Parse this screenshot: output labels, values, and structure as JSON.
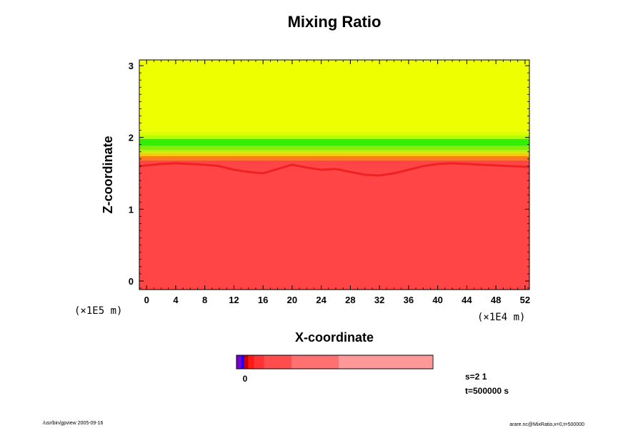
{
  "chart_data": {
    "type": "heatmap",
    "title": "Mixing Ratio",
    "xlabel": "X-coordinate",
    "ylabel": "Z-coordinate",
    "x_exponent_label": "(×1E4 m)",
    "y_exponent_label": "(×1E5 m)",
    "x_ticks": [
      0,
      4,
      8,
      12,
      16,
      20,
      24,
      28,
      32,
      36,
      40,
      44,
      48,
      52
    ],
    "y_ticks": [
      0,
      1,
      2,
      3
    ],
    "xlim": [
      -1,
      52.6
    ],
    "ylim": [
      -0.12,
      3.08
    ],
    "layers": [
      {
        "z_bottom": 2.08,
        "z_top": 3.08,
        "color": "#eeff00"
      },
      {
        "z_bottom": 2.03,
        "z_top": 2.08,
        "color": "#ddff00"
      },
      {
        "z_bottom": 1.98,
        "z_top": 2.03,
        "color": "#b6ff00"
      },
      {
        "z_bottom": 1.88,
        "z_top": 1.98,
        "color": "#33ee00"
      },
      {
        "z_bottom": 1.82,
        "z_top": 1.88,
        "color": "#88ee00"
      },
      {
        "z_bottom": 1.78,
        "z_top": 1.82,
        "color": "#ccee00"
      },
      {
        "z_bottom": 1.74,
        "z_top": 1.78,
        "color": "#ffc800"
      },
      {
        "z_bottom": 1.68,
        "z_top": 1.74,
        "color": "#ff7a1a"
      },
      {
        "z_bottom": -0.12,
        "z_top": 1.68,
        "color": "#ff4545"
      }
    ],
    "interface_color": "#ee2222",
    "interface_x": [
      -1,
      2,
      4,
      6,
      8,
      10,
      12,
      14,
      16,
      18,
      20,
      22,
      24,
      26,
      28,
      30,
      32,
      34,
      36,
      38,
      40,
      42,
      44,
      46,
      48,
      50,
      52.6
    ],
    "interface_z": [
      1.6,
      1.63,
      1.64,
      1.63,
      1.62,
      1.6,
      1.55,
      1.52,
      1.5,
      1.56,
      1.62,
      1.58,
      1.55,
      1.56,
      1.52,
      1.48,
      1.47,
      1.5,
      1.55,
      1.6,
      1.63,
      1.64,
      1.63,
      1.62,
      1.61,
      1.6,
      1.59
    ],
    "colorbar": {
      "label": "0",
      "segments": [
        {
          "width": 0.025,
          "color": "#7a00cc"
        },
        {
          "width": 0.015,
          "color": "#2200ff"
        },
        {
          "width": 0.02,
          "color": "#cc0000"
        },
        {
          "width": 0.03,
          "color": "#ff1a1a"
        },
        {
          "width": 0.05,
          "color": "#ff3333"
        },
        {
          "width": 0.14,
          "color": "#ff4d4d"
        },
        {
          "width": 0.24,
          "color": "#ff7070"
        },
        {
          "width": 0.475,
          "color": "#ff9999"
        }
      ]
    },
    "info": {
      "step": "s=2 1",
      "time": "t=500000 s"
    }
  },
  "footer": {
    "left": "/usr/bin/gpview 2005-09-16",
    "right": "arare.nc@MixRatio,x=0,t=500000"
  }
}
